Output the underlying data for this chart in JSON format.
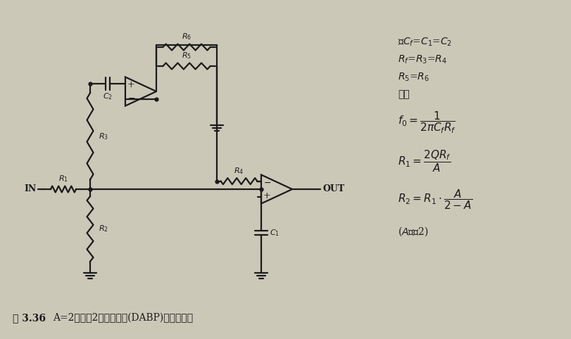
{
  "bg_color": "#ccc8b8",
  "line_color": "#1a1a1a",
  "fig_label": "图 3.36",
  "fig_caption": "A=2以下的2级放大器型(DABP)带通滤波器",
  "formula1": "设$C_f$=$C_1$=$C_2$",
  "formula2": "$R_f$=$R_3$=$R_4$",
  "formula3": "$R_5$=$R_6$",
  "formula4": "则有",
  "formula5": "$f_0=\\dfrac{1}{2\\pi C_f R_f}$",
  "formula6": "$R_1=\\dfrac{2QR_f}{A}$",
  "formula7": "$R_2=R_1 \\cdot \\dfrac{A}{2-A}$",
  "formula8": "($A$小于2)"
}
